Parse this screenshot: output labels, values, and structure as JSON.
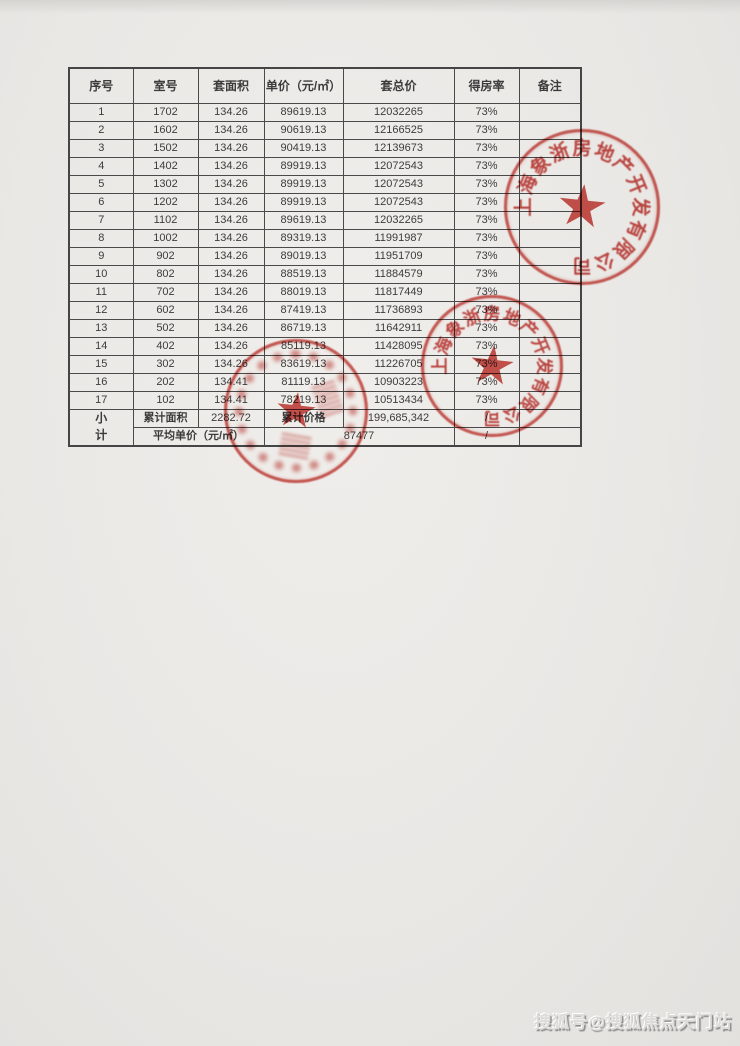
{
  "page": {
    "watermark": "搜狐号@搜狐焦点天门站"
  },
  "table": {
    "headers": [
      "序号",
      "室号",
      "套面积",
      "单价（元/㎡）",
      "套总价",
      "得房率",
      "备注"
    ],
    "rows": [
      [
        "1",
        "1702",
        "134.26",
        "89619.13",
        "12032265",
        "73%",
        ""
      ],
      [
        "2",
        "1602",
        "134.26",
        "90619.13",
        "12166525",
        "73%",
        ""
      ],
      [
        "3",
        "1502",
        "134.26",
        "90419.13",
        "12139673",
        "73%",
        ""
      ],
      [
        "4",
        "1402",
        "134.26",
        "89919.13",
        "12072543",
        "73%",
        ""
      ],
      [
        "5",
        "1302",
        "134.26",
        "89919.13",
        "12072543",
        "73%",
        ""
      ],
      [
        "6",
        "1202",
        "134.26",
        "89919.13",
        "12072543",
        "73%",
        ""
      ],
      [
        "7",
        "1102",
        "134.26",
        "89619.13",
        "12032265",
        "73%",
        ""
      ],
      [
        "8",
        "1002",
        "134.26",
        "89319.13",
        "11991987",
        "73%",
        ""
      ],
      [
        "9",
        "902",
        "134.26",
        "89019.13",
        "11951709",
        "73%",
        ""
      ],
      [
        "10",
        "802",
        "134.26",
        "88519.13",
        "11884579",
        "73%",
        ""
      ],
      [
        "11",
        "702",
        "134.26",
        "88019.13",
        "11817449",
        "73%",
        ""
      ],
      [
        "12",
        "602",
        "134.26",
        "87419.13",
        "11736893",
        "73%",
        ""
      ],
      [
        "13",
        "502",
        "134.26",
        "86719.13",
        "11642911",
        "73%",
        ""
      ],
      [
        "14",
        "402",
        "134.26",
        "85119.13",
        "11428095",
        "73%",
        ""
      ],
      [
        "15",
        "302",
        "134.26",
        "83619.13",
        "11226705",
        "73%",
        ""
      ],
      [
        "16",
        "202",
        "134.41",
        "81119.13",
        "10903223",
        "73%",
        ""
      ],
      [
        "17",
        "102",
        "134.41",
        "78219.13",
        "10513434",
        "73%",
        ""
      ]
    ],
    "summary": {
      "row_label": "小计",
      "row1": {
        "area_label": "累计面积",
        "area_value": "2282.72",
        "price_label": "累计价格",
        "price_value": "199,685,342",
        "ratio": "/",
        "note": ""
      },
      "row2": {
        "label": "平均单价（元/㎡）",
        "value": "87477",
        "ratio": "/",
        "note": ""
      }
    }
  },
  "stamps": [
    {
      "name": "company-seal-top-right",
      "ring_text": "上海象浙房地产开发有限公司",
      "legible": true
    },
    {
      "name": "company-seal-middle",
      "ring_text": "上海象浙房地产开发有限公司",
      "legible": true
    },
    {
      "name": "filing-seal-bottom-left",
      "ring_text": "",
      "legible": false
    }
  ],
  "colors": {
    "stamp_red": "#c6342e",
    "ink": "#3c3c3c",
    "paper": "#ebe9e6"
  }
}
